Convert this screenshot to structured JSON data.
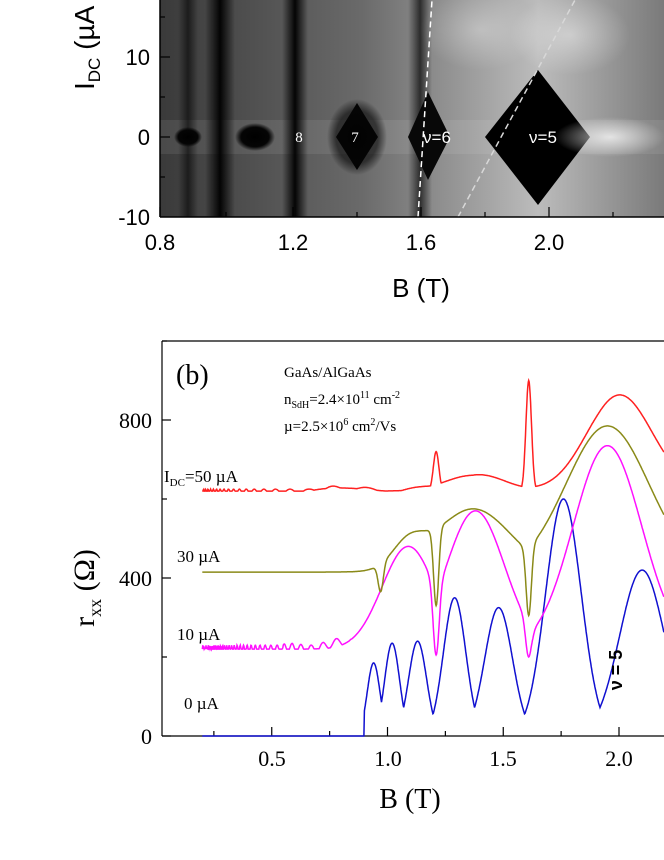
{
  "panel_a": {
    "ylabel_main": "I",
    "ylabel_sub": "DC",
    "ylabel_unit": " (µA",
    "xlabel": "B (T)",
    "x_ticks": [
      "0.8",
      "1.2",
      "1.6",
      "2.0"
    ],
    "y_ticks": [
      "10",
      "0",
      "-10"
    ],
    "nu_labels": [
      "8",
      "7",
      "ν=6",
      "ν=5"
    ]
  },
  "panel_b": {
    "panel_label": "(b)",
    "info_line1": "GaAs/AlGaAs",
    "info_n_pre": "n",
    "info_n_sub": "SdH",
    "info_n_mid": "=2.4×10",
    "info_n_sup": "11",
    "info_n_unit": " cm",
    "info_n_sup2": "-2",
    "info_mu_pre": "µ=2.5×10",
    "info_mu_sup": "6",
    "info_mu_unit": " cm",
    "info_mu_sup2": "2",
    "info_mu_tail": "/Vs",
    "ylabel_main": "r",
    "ylabel_sub": "xx",
    "ylabel_unit": " (Ω)",
    "xlabel": "B (T)",
    "x_ticks": [
      "0.5",
      "1.0",
      "1.5",
      "2.0"
    ],
    "y_ticks": [
      "800",
      "400",
      "0"
    ],
    "curve_label_50_pre": "I",
    "curve_label_50_sub": "DC",
    "curve_label_50_post": "=50 µA",
    "curve_label_30": "30 µA",
    "curve_label_10": "10 µA",
    "curve_label_0": "0 µA",
    "nu_label": "ν = 5"
  },
  "chart_data": [
    {
      "type": "heatmap",
      "panel": "a",
      "xlabel": "B (T)",
      "ylabel": "IDC (µA",
      "xlim": [
        0.8,
        2.2
      ],
      "ylim": [
        -10,
        20
      ],
      "minima_B": [
        0.88,
        0.985,
        1.08,
        1.225,
        1.4,
        1.61,
        1.95
      ],
      "nu_labels": [
        {
          "label": "8",
          "B": 1.23,
          "I": 0
        },
        {
          "label": "7",
          "B": 1.4,
          "I": 0
        },
        {
          "label": "ν=6",
          "B": 1.62,
          "I": 0
        },
        {
          "label": "ν=5",
          "B": 1.95,
          "I": 0
        }
      ]
    },
    {
      "type": "line",
      "panel": "b",
      "xlabel": "B (T)",
      "ylabel": "rxx (Ω)",
      "xlim": [
        0.2,
        2.15
      ],
      "ylim": [
        0,
        1000
      ],
      "series": [
        {
          "name": "I_DC=50 µA",
          "color": "#ff2020",
          "offset": 620,
          "peaks": [
            [
              1.21,
              720
            ],
            [
              1.61,
              900
            ]
          ],
          "baseline_end": 860
        },
        {
          "name": "30 µA",
          "color": "#8a8a18",
          "offset": 415,
          "dips": [
            [
              0.97,
              365
            ],
            [
              1.21,
              330
            ],
            [
              1.61,
              305
            ]
          ],
          "hump": [
            [
              1.37,
              575
            ],
            [
              1.95,
              785
            ]
          ]
        },
        {
          "name": "10 µA",
          "color": "#ff10ff",
          "offset": 220,
          "peaks": [
            [
              1.09,
              480
            ],
            [
              1.38,
              570
            ],
            [
              1.95,
              735
            ]
          ],
          "dips": [
            [
              1.21,
              205
            ],
            [
              1.61,
              200
            ]
          ]
        },
        {
          "name": "0 µA",
          "color": "#1010d0",
          "offset": 0,
          "peaks": [
            [
              0.94,
              185
            ],
            [
              1.02,
              235
            ],
            [
              1.13,
              240
            ],
            [
              1.29,
              350
            ],
            [
              1.48,
              325
            ],
            [
              1.76,
              600
            ],
            [
              2.1,
              420
            ]
          ],
          "minima": [
            [
              1.95,
              0
            ]
          ]
        }
      ]
    }
  ]
}
